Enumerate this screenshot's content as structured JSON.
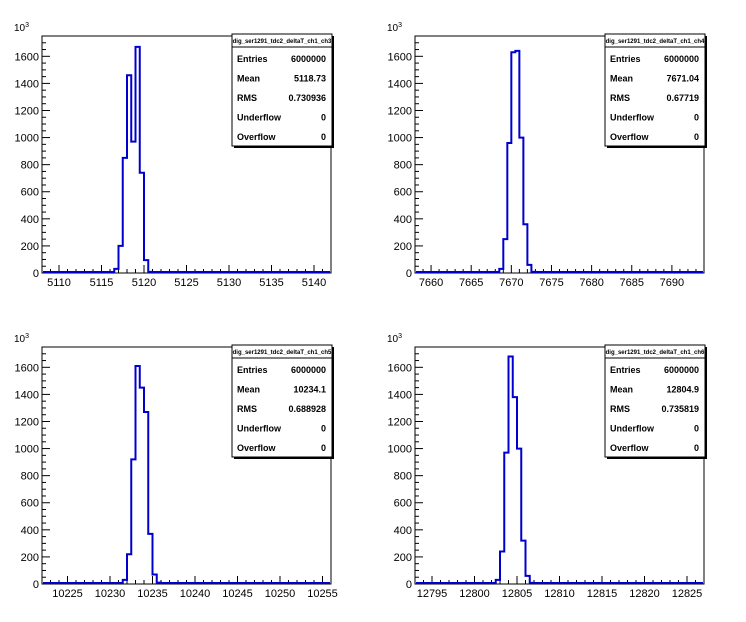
{
  "chart_data": [
    {
      "type": "histogram",
      "name": "dig_ser1291_tdc2_deltaT_ch1_ch3",
      "xlim": [
        5108,
        5142
      ],
      "ylim": [
        0,
        1750
      ],
      "x_ticks": [
        5110,
        5115,
        5120,
        5125,
        5130,
        5135,
        5140
      ],
      "y_ticks": [
        0,
        200,
        400,
        600,
        800,
        1000,
        1200,
        1400,
        1600
      ],
      "y_exponent": "×10³",
      "bins": [
        {
          "x0": 5116.5,
          "x1": 5117.0,
          "y": 30
        },
        {
          "x0": 5117.0,
          "x1": 5117.5,
          "y": 200
        },
        {
          "x0": 5117.5,
          "x1": 5118.0,
          "y": 850
        },
        {
          "x0": 5118.0,
          "x1": 5118.5,
          "y": 1460
        },
        {
          "x0": 5118.5,
          "x1": 5119.0,
          "y": 970
        },
        {
          "x0": 5119.0,
          "x1": 5119.5,
          "y": 1670
        },
        {
          "x0": 5119.5,
          "x1": 5120.0,
          "y": 740
        },
        {
          "x0": 5120.0,
          "x1": 5120.5,
          "y": 95
        },
        {
          "x0": 5120.5,
          "x1": 5121.0,
          "y": 8
        }
      ],
      "stats": {
        "Entries": "6000000",
        "Mean": "5118.73",
        "RMS": "0.730936",
        "Underflow": "0",
        "Overflow": "0"
      }
    },
    {
      "type": "histogram",
      "name": "dig_ser1291_tdc2_deltaT_ch1_ch4",
      "xlim": [
        7658,
        7694
      ],
      "ylim": [
        0,
        1750
      ],
      "x_ticks": [
        7660,
        7665,
        7670,
        7675,
        7680,
        7685,
        7690
      ],
      "y_ticks": [
        0,
        200,
        400,
        600,
        800,
        1000,
        1200,
        1400,
        1600
      ],
      "y_exponent": "×10³",
      "bins": [
        {
          "x0": 7668.5,
          "x1": 7669.0,
          "y": 30
        },
        {
          "x0": 7669.0,
          "x1": 7669.5,
          "y": 250
        },
        {
          "x0": 7669.5,
          "x1": 7670.0,
          "y": 960
        },
        {
          "x0": 7670.0,
          "x1": 7670.5,
          "y": 1630
        },
        {
          "x0": 7670.5,
          "x1": 7671.0,
          "y": 1640
        },
        {
          "x0": 7671.0,
          "x1": 7671.5,
          "y": 1000
        },
        {
          "x0": 7671.5,
          "x1": 7672.0,
          "y": 360
        },
        {
          "x0": 7672.0,
          "x1": 7672.5,
          "y": 60
        },
        {
          "x0": 7672.5,
          "x1": 7673.0,
          "y": 8
        }
      ],
      "stats": {
        "Entries": "6000000",
        "Mean": "7671.04",
        "RMS": "0.67719",
        "Underflow": "0",
        "Overflow": "0"
      }
    },
    {
      "type": "histogram",
      "name": "dig_ser1291_tdc2_deltaT_ch1_ch5",
      "xlim": [
        10222,
        10256
      ],
      "ylim": [
        0,
        1750
      ],
      "x_ticks": [
        10225,
        10230,
        10235,
        10240,
        10245,
        10250,
        10255
      ],
      "y_ticks": [
        0,
        200,
        400,
        600,
        800,
        1000,
        1200,
        1400,
        1600
      ],
      "y_exponent": "×10³",
      "bins": [
        {
          "x0": 10231.5,
          "x1": 10232.0,
          "y": 30
        },
        {
          "x0": 10232.0,
          "x1": 10232.5,
          "y": 220
        },
        {
          "x0": 10232.5,
          "x1": 10233.0,
          "y": 920
        },
        {
          "x0": 10233.0,
          "x1": 10233.5,
          "y": 1610
        },
        {
          "x0": 10233.5,
          "x1": 10234.0,
          "y": 1450
        },
        {
          "x0": 10234.0,
          "x1": 10234.5,
          "y": 1270
        },
        {
          "x0": 10234.5,
          "x1": 10235.0,
          "y": 370
        },
        {
          "x0": 10235.0,
          "x1": 10235.5,
          "y": 70
        },
        {
          "x0": 10235.5,
          "x1": 10236.0,
          "y": 10
        }
      ],
      "stats": {
        "Entries": "6000000",
        "Mean": "10234.1",
        "RMS": "0.688928",
        "Underflow": "0",
        "Overflow": "0"
      }
    },
    {
      "type": "histogram",
      "name": "dig_ser1291_tdc2_deltaT_ch1_ch6",
      "xlim": [
        12793,
        12827
      ],
      "ylim": [
        0,
        1750
      ],
      "x_ticks": [
        12795,
        12800,
        12805,
        12810,
        12815,
        12820,
        12825
      ],
      "y_ticks": [
        0,
        200,
        400,
        600,
        800,
        1000,
        1200,
        1400,
        1600
      ],
      "y_exponent": "×10³",
      "bins": [
        {
          "x0": 12802.5,
          "x1": 12803.0,
          "y": 30
        },
        {
          "x0": 12803.0,
          "x1": 12803.5,
          "y": 240
        },
        {
          "x0": 12803.5,
          "x1": 12804.0,
          "y": 970
        },
        {
          "x0": 12804.0,
          "x1": 12804.5,
          "y": 1680
        },
        {
          "x0": 12804.5,
          "x1": 12805.0,
          "y": 1380
        },
        {
          "x0": 12805.0,
          "x1": 12805.5,
          "y": 1000
        },
        {
          "x0": 12805.5,
          "x1": 12806.0,
          "y": 320
        },
        {
          "x0": 12806.0,
          "x1": 12806.5,
          "y": 60
        },
        {
          "x0": 12806.5,
          "x1": 12807.0,
          "y": 8
        }
      ],
      "stats": {
        "Entries": "6000000",
        "Mean": "12804.9",
        "RMS": "0.735819",
        "Underflow": "0",
        "Overflow": "0"
      }
    }
  ],
  "style": {
    "line_color": "#0000cc",
    "axis_color": "#000000",
    "background": "#ffffff"
  }
}
